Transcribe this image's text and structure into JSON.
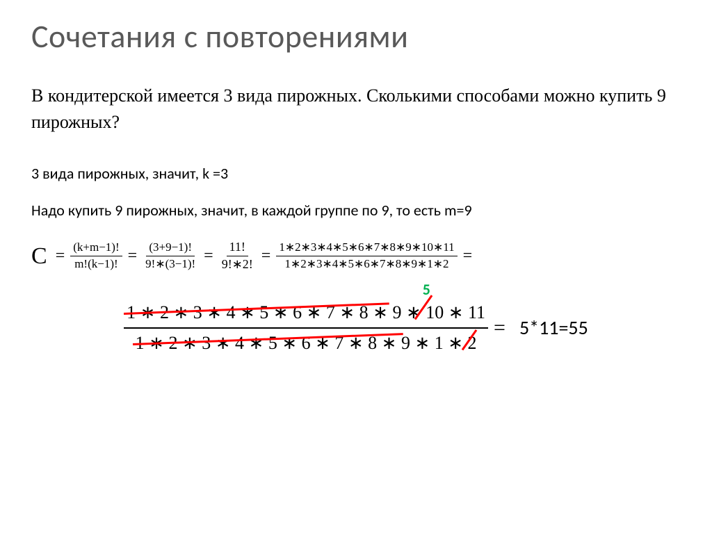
{
  "title": "Сочетания с повторениями",
  "problem": "В кондитерской имеется 3 вида пирожных. Сколькими способами можно купить 9 пирожных?",
  "step1": "3 вида пирожных, значит, k =3",
  "step2": "Надо купить 9 пирожных, значит, в каждой группе по 9, то есть m=9",
  "formula": {
    "C": "C",
    "eq": "=",
    "f1_num": "(k+m−1)!",
    "f1_den": "m!(k−1)!",
    "f2_num": "(3+9−1)!",
    "f2_den": "9!∗(3−1)!",
    "f3_num": "11!",
    "f3_den": "9!∗2!",
    "f4_num": "1∗2∗3∗4∗5∗6∗7∗8∗9∗10∗11",
    "f4_den": "1∗2∗3∗4∗5∗6∗7∗8∗9∗1∗2",
    "trail": "="
  },
  "final": {
    "num": "1 ∗ 2 ∗ 3 ∗ 4 ∗ 5 ∗ 6 ∗ 7 ∗ 8 ∗ 9 ∗ 10 ∗ 11",
    "den": "1 ∗ 2 ∗ 3 ∗ 4 ∗ 5 ∗ 6 ∗ 7 ∗ 8 ∗ 9 ∗ 1 ∗ 2",
    "annot": "5",
    "eq": "=",
    "result": "5*11=55"
  },
  "colors": {
    "title": "#595959",
    "text": "#000000",
    "strike": "#ff0000",
    "annot": "#00b050",
    "background": "#ffffff"
  },
  "strikes": {
    "num": {
      "left_pct": 0,
      "width_pct": 73,
      "rotate_deg": -2.2
    },
    "den": {
      "left_pct": 0,
      "width_pct": 78,
      "rotate_deg": -2.2
    },
    "ten": {
      "left_pct": 80,
      "width_pct": 8,
      "rotate_deg": -55
    },
    "two": {
      "left_pct": 95,
      "width_pct": 7,
      "rotate_deg": -55
    }
  }
}
